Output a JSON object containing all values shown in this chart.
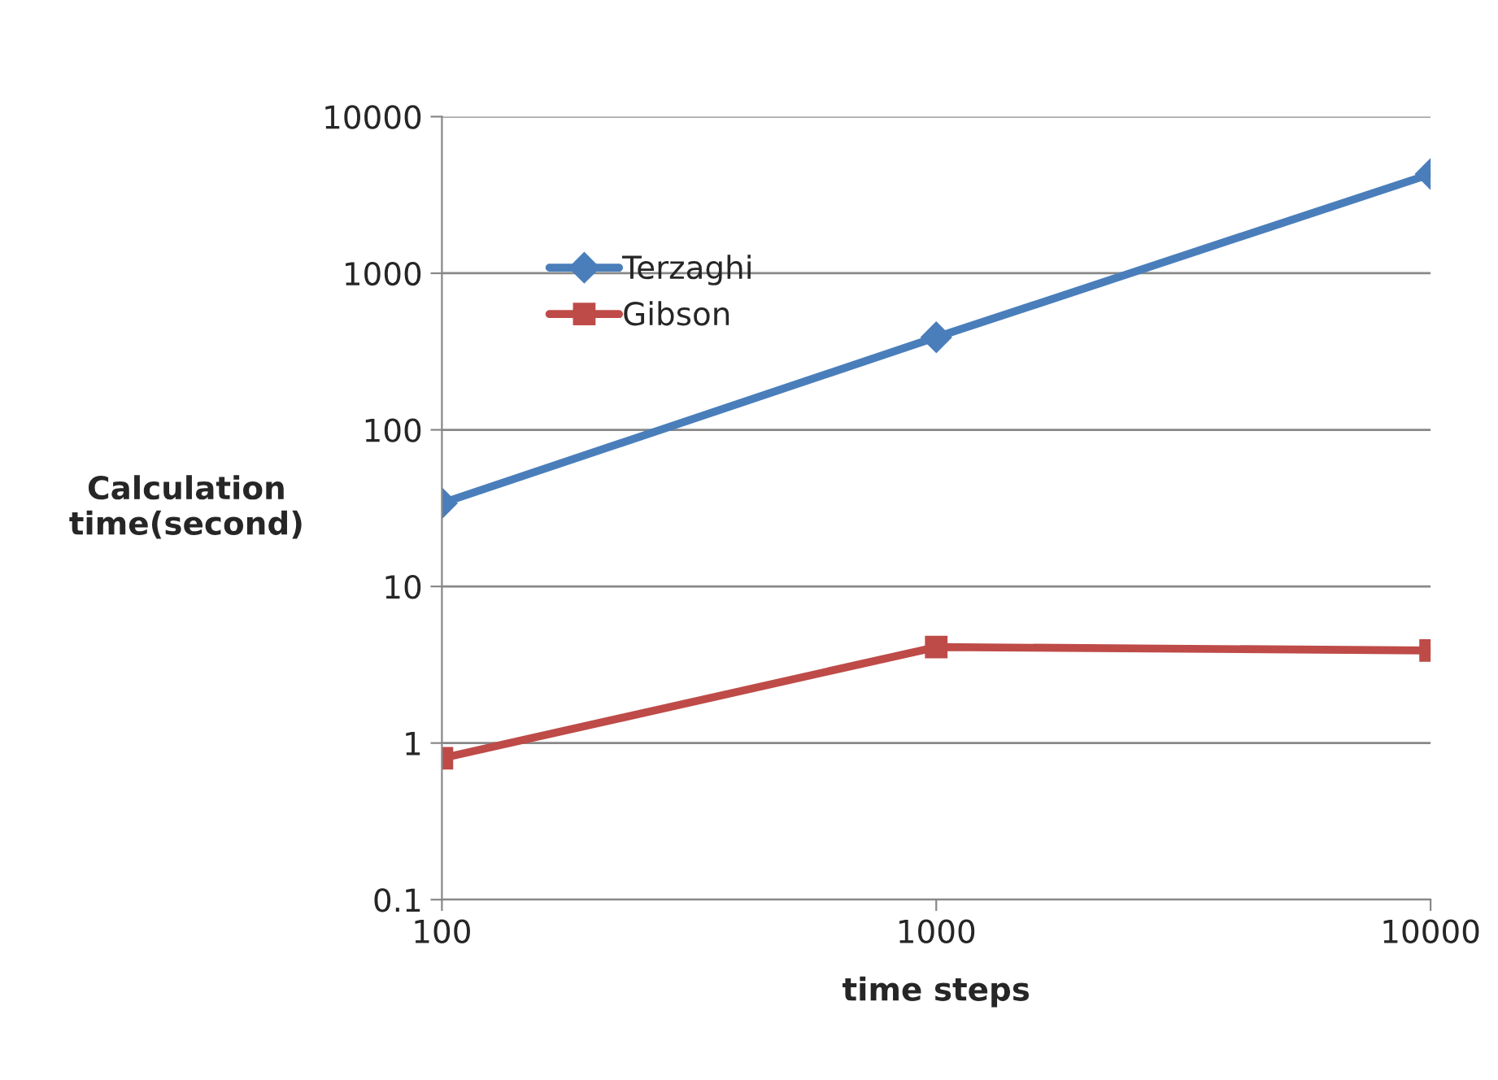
{
  "chart_data": {
    "type": "line",
    "xlabel": "time steps",
    "ylabel": "Calculation\ntime(second)",
    "log": "xy",
    "x": [
      100,
      1000,
      10000
    ],
    "series": [
      {
        "name": "Terzaghi",
        "color": "#4a7ebb",
        "values": [
          34,
          390,
          4300
        ],
        "marker": "diamond"
      },
      {
        "name": "Gibson",
        "color": "#be4b48",
        "values": [
          0.8,
          4.1,
          3.9
        ],
        "marker": "square"
      }
    ],
    "xlim": [
      100,
      10000
    ],
    "xticks": [
      100,
      1000,
      10000
    ],
    "ylim": [
      0.1,
      10000
    ],
    "yticks": [
      0.1,
      1,
      10,
      100,
      1000,
      10000
    ],
    "grid": "y",
    "legend": "top left",
    "line_style": "solid"
  }
}
